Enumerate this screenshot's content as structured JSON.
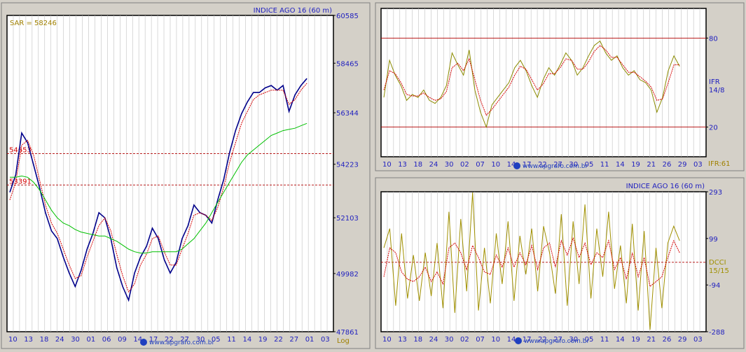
{
  "colors": {
    "background": "#d4d0c8",
    "plot_bg": "#ffffff",
    "grid": "#c0c0c0",
    "axis_text": "#1f1fbf",
    "price": "#00008b",
    "sar": "#d40000",
    "ma": "#00c000",
    "ifr": "#8b8b00",
    "dcci": "#a09000",
    "level": "#b00000",
    "info": "#a08000"
  },
  "chart_data": [
    {
      "type": "line",
      "title": "INDICE AGO 16 (60 m)",
      "annotation": "SAR = 58246",
      "scale_label": "Log",
      "x_tick_labels": [
        "10",
        "13",
        "18",
        "24",
        "30",
        "01",
        "06",
        "09",
        "14",
        "17",
        "22",
        "27",
        "30",
        "05",
        "11",
        "14",
        "19",
        "22",
        "27",
        "01",
        "03"
      ],
      "y_ticks": [
        60585,
        58465,
        56344,
        54223,
        52103,
        49982,
        47861
      ],
      "ylim": [
        47861,
        60585
      ],
      "levels": [
        {
          "label": "54653",
          "value": 54653
        },
        {
          "label": "53391",
          "value": 53391
        }
      ],
      "series": [
        {
          "key": "price",
          "values": [
            53100,
            53800,
            55500,
            55100,
            54200,
            53300,
            52300,
            51600,
            51300,
            50600,
            50000,
            49500,
            50100,
            50900,
            51500,
            52300,
            52100,
            51300,
            50200,
            49500,
            49000,
            50000,
            50600,
            51000,
            51700,
            51300,
            50500,
            50000,
            50400,
            51300,
            51800,
            52600,
            52300,
            52200,
            51900,
            52800,
            53600,
            54700,
            55600,
            56300,
            56800,
            57200,
            57200,
            57400,
            57500,
            57300,
            57500,
            56400,
            57100,
            57500,
            57800
          ]
        },
        {
          "key": "sar",
          "values": [
            52800,
            53500,
            55000,
            55200,
            54600,
            53600,
            52600,
            51900,
            51500,
            50900,
            50300,
            49800,
            49900,
            50600,
            51200,
            51800,
            52100,
            51600,
            50700,
            49900,
            49300,
            49600,
            50300,
            50700,
            51300,
            51400,
            50800,
            50300,
            50300,
            50900,
            51500,
            52200,
            52300,
            52200,
            52000,
            52500,
            53300,
            54300,
            55100,
            55900,
            56400,
            56900,
            57100,
            57200,
            57300,
            57300,
            57300,
            56700,
            56900,
            57300,
            57600
          ]
        },
        {
          "key": "ma",
          "values": [
            53700,
            53700,
            53750,
            53700,
            53500,
            53200,
            52800,
            52400,
            52100,
            51900,
            51800,
            51650,
            51550,
            51500,
            51450,
            51400,
            51400,
            51300,
            51200,
            51050,
            50900,
            50800,
            50750,
            50750,
            50800,
            50800,
            50800,
            50800,
            50800,
            50900,
            51100,
            51300,
            51600,
            51900,
            52300,
            52700,
            53100,
            53500,
            53900,
            54300,
            54600,
            54800,
            55000,
            55200,
            55400,
            55500,
            55600,
            55650,
            55700,
            55800,
            55900
          ]
        }
      ]
    },
    {
      "type": "line",
      "title": "",
      "y_ticks": [
        80,
        20
      ],
      "ylim": [
        0,
        100
      ],
      "x_tick_labels": [
        "10",
        "13",
        "18",
        "24",
        "30",
        "02",
        "07",
        "10",
        "14",
        "17",
        "22",
        "27",
        "30",
        "05",
        "11",
        "14",
        "19",
        "21",
        "26",
        "29",
        "03"
      ],
      "side_label": [
        "IFR",
        "14/8"
      ],
      "value_label": "IFR:61",
      "levels": [
        {
          "label": "80",
          "value": 80
        },
        {
          "label": "20",
          "value": 20
        }
      ],
      "series": [
        {
          "key": "ifr",
          "values": [
            40,
            65,
            55,
            48,
            38,
            42,
            40,
            45,
            38,
            36,
            40,
            48,
            70,
            62,
            55,
            72,
            45,
            30,
            20,
            35,
            40,
            45,
            50,
            60,
            65,
            58,
            48,
            40,
            52,
            60,
            55,
            62,
            70,
            65,
            55,
            60,
            68,
            75,
            78,
            70,
            65,
            68,
            60,
            55,
            58,
            52,
            50,
            45,
            30,
            40,
            58,
            68,
            61
          ]
        },
        {
          "key": "ifr_signal",
          "values": [
            45,
            58,
            56,
            50,
            42,
            41,
            41,
            43,
            40,
            38,
            39,
            44,
            60,
            63,
            58,
            66,
            52,
            38,
            28,
            32,
            37,
            42,
            47,
            55,
            61,
            59,
            52,
            45,
            49,
            56,
            56,
            60,
            66,
            65,
            59,
            59,
            64,
            71,
            75,
            72,
            67,
            67,
            62,
            57,
            57,
            54,
            51,
            47,
            38,
            39,
            50,
            62,
            62
          ]
        }
      ]
    },
    {
      "type": "line",
      "title": "INDICE AGO 16 (60 m)",
      "y_ticks": [
        293,
        99,
        -94,
        -288
      ],
      "ylim": [
        -288,
        293
      ],
      "x_tick_labels": [
        "10",
        "13",
        "18",
        "24",
        "30",
        "02",
        "07",
        "10",
        "14",
        "17",
        "22",
        "27",
        "30",
        "05",
        "11",
        "14",
        "19",
        "21",
        "26",
        "29",
        "03"
      ],
      "side_label": [
        "DCCI",
        "15/15"
      ],
      "levels": [
        {
          "label": "",
          "value": 0
        }
      ],
      "series": [
        {
          "key": "dcci",
          "values": [
            60,
            140,
            -180,
            120,
            -150,
            30,
            -160,
            40,
            -140,
            80,
            -190,
            210,
            -210,
            180,
            -120,
            290,
            -200,
            60,
            -170,
            120,
            -90,
            170,
            -160,
            110,
            -50,
            140,
            -120,
            150,
            40,
            -130,
            200,
            -180,
            170,
            -90,
            240,
            -150,
            140,
            -60,
            210,
            -110,
            70,
            -170,
            160,
            -200,
            130,
            -280,
            60,
            -190,
            80,
            150,
            90
          ]
        },
        {
          "key": "dcci_signal",
          "values": [
            -60,
            60,
            40,
            -40,
            -70,
            -80,
            -60,
            -20,
            -80,
            -40,
            -90,
            60,
            80,
            40,
            -30,
            70,
            20,
            -40,
            -50,
            30,
            -20,
            60,
            -20,
            40,
            -10,
            70,
            -30,
            60,
            80,
            -20,
            90,
            30,
            100,
            20,
            80,
            -10,
            40,
            20,
            90,
            -30,
            20,
            -70,
            40,
            -60,
            20,
            -100,
            -80,
            -60,
            20,
            90,
            40
          ]
        }
      ]
    }
  ]
}
